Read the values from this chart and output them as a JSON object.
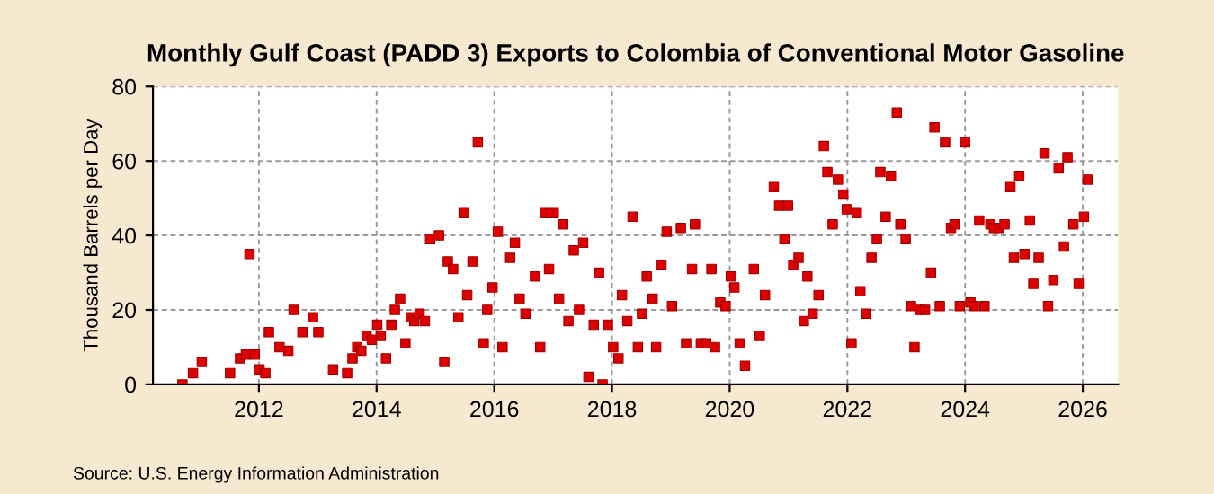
{
  "chart_data": {
    "type": "scatter",
    "title": "Monthly Gulf Coast (PADD 3) Exports to Colombia of Conventional Motor Gasoline",
    "ylabel": "Thousand Barrels per Day",
    "annotations": [
      "Source: U.S. Energy Information Administration"
    ],
    "series": [
      {
        "color": "#dd0000",
        "x": [
          2010.7,
          2010.88,
          2011.03,
          2011.51,
          2011.68,
          2011.78,
          2011.84,
          2011.93,
          2012.01,
          2012.11,
          2012.17,
          2012.35,
          2012.5,
          2012.59,
          2012.74,
          2012.92,
          2013.01,
          2013.26,
          2013.5,
          2013.59,
          2013.67,
          2013.74,
          2013.83,
          2013.92,
          2014.01,
          2014.07,
          2014.16,
          2014.25,
          2014.31,
          2014.4,
          2014.49,
          2014.58,
          2014.64,
          2014.73,
          2014.82,
          2014.91,
          2015.06,
          2015.15,
          2015.21,
          2015.3,
          2015.39,
          2015.48,
          2015.54,
          2015.63,
          2015.72,
          2015.82,
          2015.88,
          2015.97,
          2016.06,
          2016.14,
          2016.27,
          2016.35,
          2016.43,
          2016.53,
          2016.69,
          2016.78,
          2016.86,
          2016.93,
          2017.01,
          2017.1,
          2017.17,
          2017.26,
          2017.35,
          2017.44,
          2017.51,
          2017.6,
          2017.69,
          2017.78,
          2017.84,
          2017.93,
          2018.02,
          2018.11,
          2018.17,
          2018.26,
          2018.35,
          2018.44,
          2018.51,
          2018.59,
          2018.69,
          2018.75,
          2018.84,
          2018.93,
          2019.02,
          2019.17,
          2019.26,
          2019.36,
          2019.41,
          2019.51,
          2019.6,
          2019.69,
          2019.75,
          2019.84,
          2019.93,
          2020.02,
          2020.08,
          2020.17,
          2020.26,
          2020.41,
          2020.51,
          2020.6,
          2020.75,
          2020.84,
          2020.93,
          2020.99,
          2021.08,
          2021.17,
          2021.26,
          2021.32,
          2021.41,
          2021.51,
          2021.6,
          2021.66,
          2021.75,
          2021.84,
          2021.93,
          2021.99,
          2022.07,
          2022.16,
          2022.22,
          2022.32,
          2022.41,
          2022.5,
          2022.56,
          2022.65,
          2022.74,
          2022.84,
          2022.9,
          2022.99,
          2023.08,
          2023.14,
          2023.23,
          2023.32,
          2023.42,
          2023.48,
          2023.57,
          2023.66,
          2023.76,
          2023.82,
          2023.91,
          2024.0,
          2024.09,
          2024.15,
          2024.24,
          2024.33,
          2024.43,
          2024.49,
          2024.58,
          2024.67,
          2024.77,
          2024.83,
          2024.92,
          2025.01,
          2025.1,
          2025.16,
          2025.25,
          2025.35,
          2025.41,
          2025.5,
          2025.59,
          2025.68,
          2025.74,
          2025.84,
          2025.93,
          2026.02,
          2026.08
        ],
        "values": [
          0,
          3,
          6,
          3,
          7,
          8,
          35,
          8,
          4,
          3,
          14,
          10,
          9,
          20,
          14,
          18,
          14,
          4,
          3,
          7,
          10,
          9,
          13,
          12,
          16,
          13,
          7,
          16,
          20,
          23,
          11,
          18,
          17,
          19,
          17,
          39,
          40,
          6,
          33,
          31,
          18,
          46,
          24,
          33,
          65,
          11,
          20,
          26,
          41,
          10,
          34,
          38,
          23,
          19,
          29,
          10,
          46,
          31,
          46,
          23,
          43,
          17,
          36,
          20,
          38,
          2,
          16,
          30,
          0,
          16,
          10,
          7,
          24,
          17,
          45,
          10,
          19,
          29,
          23,
          10,
          32,
          41,
          21,
          42,
          11,
          31,
          43,
          11,
          11,
          31,
          10,
          22,
          21,
          29,
          26,
          11,
          5,
          31,
          13,
          24,
          53,
          48,
          39,
          48,
          32,
          34,
          17,
          29,
          19,
          24,
          64,
          57,
          43,
          55,
          51,
          47,
          11,
          46,
          25,
          19,
          34,
          39,
          57,
          45,
          56,
          73,
          43,
          39,
          21,
          10,
          20,
          20,
          30,
          69,
          21,
          65,
          42,
          43,
          21,
          65,
          22,
          21,
          44,
          21,
          43,
          42,
          42,
          43,
          53,
          34,
          56,
          35,
          44,
          27,
          34,
          62,
          21,
          28,
          58,
          37,
          61,
          43,
          27,
          45,
          55
        ]
      }
    ],
    "xlim": [
      2010.2,
      2026.6
    ],
    "xticks": [
      2012,
      2014,
      2016,
      2018,
      2020,
      2022,
      2024,
      2026
    ],
    "ylim": [
      0,
      80
    ],
    "yticks": [
      0,
      20,
      40,
      60,
      80
    ],
    "grid": true,
    "marker": "square"
  }
}
